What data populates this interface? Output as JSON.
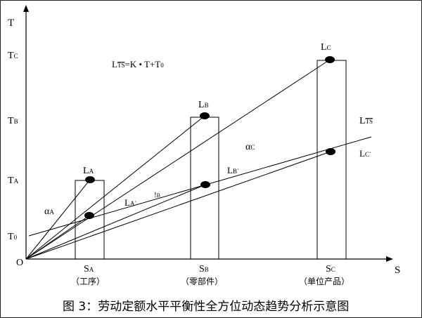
{
  "axes": {
    "y_label": "T",
    "x_label": "S",
    "origin": "O",
    "y_ticks": [
      "T",
      "T",
      "T",
      "T"
    ],
    "y_ticks_sub": [
      "C",
      "B",
      "A",
      "0"
    ],
    "x_ticks": [
      "S",
      "S",
      "S"
    ],
    "x_ticks_sub": [
      "A",
      "B",
      "C"
    ],
    "x_ticks_notes": [
      "（工序）",
      "（零部件）",
      "（单位产品）"
    ]
  },
  "formula": {
    "L": "L",
    "sub": "TS",
    "rest": "=K • T+T",
    "tail_sub": "0"
  },
  "points": {
    "LA": {
      "main": "L",
      "sub": "A"
    },
    "LB": {
      "main": "L",
      "sub": "B"
    },
    "LC": {
      "main": "L",
      "sub": "C"
    },
    "LA_prime": {
      "main": "L",
      "sub": "A`"
    },
    "LB_prime": {
      "main": "L",
      "sub": "B`"
    },
    "LC_prime": {
      "main": "L",
      "sub": "C`"
    },
    "beta_B": {
      "main": "!",
      "sub": "B"
    },
    "LTS": {
      "main": "L",
      "sub": "TS"
    }
  },
  "angles": {
    "alphaA": {
      "main": "α",
      "sub": "A"
    },
    "alphaC": {
      "main": "α",
      "sub": "C"
    }
  },
  "caption": "图 3：劳动定额水平平衡性全方位动态趋势分析示意图"
}
